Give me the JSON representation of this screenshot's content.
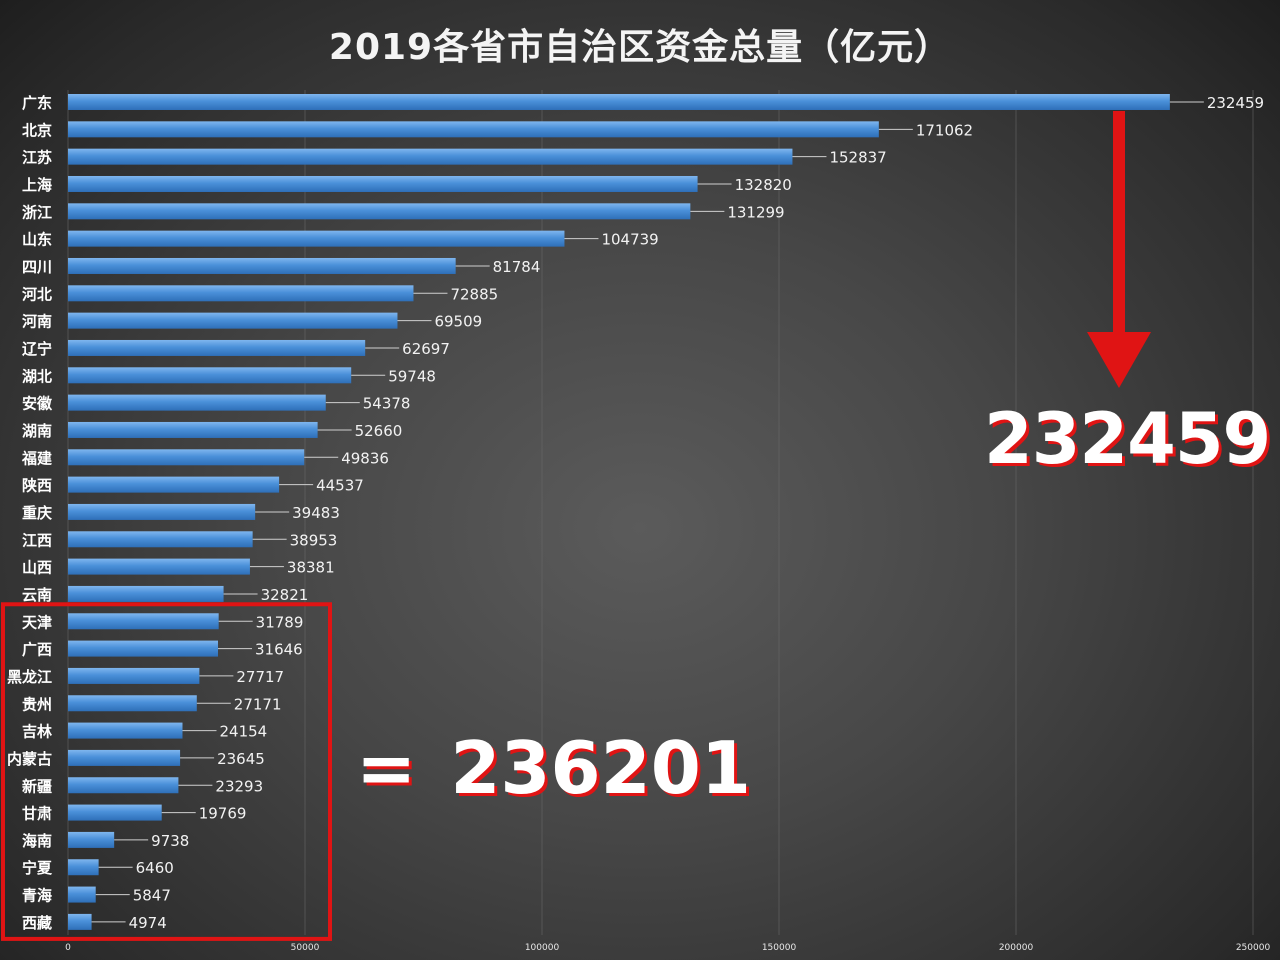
{
  "chart_data": {
    "type": "bar",
    "orientation": "horizontal",
    "title": "2019各省市自治区资金总量（亿元）",
    "categories": [
      "广东",
      "北京",
      "江苏",
      "上海",
      "浙江",
      "山东",
      "四川",
      "河北",
      "河南",
      "辽宁",
      "湖北",
      "安徽",
      "湖南",
      "福建",
      "陕西",
      "重庆",
      "江西",
      "山西",
      "云南",
      "天津",
      "广西",
      "黑龙江",
      "贵州",
      "吉林",
      "内蒙古",
      "新疆",
      "甘肃",
      "海南",
      "宁夏",
      "青海",
      "西藏"
    ],
    "values": [
      232459,
      171062,
      152837,
      132820,
      131299,
      104739,
      81784,
      72885,
      69509,
      62697,
      59748,
      54378,
      52660,
      49836,
      44537,
      39483,
      38953,
      38381,
      32821,
      31789,
      31646,
      27717,
      27171,
      24154,
      23645,
      23293,
      19769,
      9738,
      6460,
      5847,
      4974
    ],
    "xlim": [
      0,
      250000
    ],
    "x_ticks": [
      "0",
      "50000",
      "100000",
      "150000",
      "200000",
      "250000"
    ],
    "grid": true,
    "bar_color": "#4a90d9"
  },
  "annotations": {
    "highlight_value": "232459",
    "highlight_color": "#e01414",
    "sum_equals": "=",
    "sum_value": "236201",
    "highlight_group_start": "天津",
    "highlight_group_end": "西藏"
  }
}
